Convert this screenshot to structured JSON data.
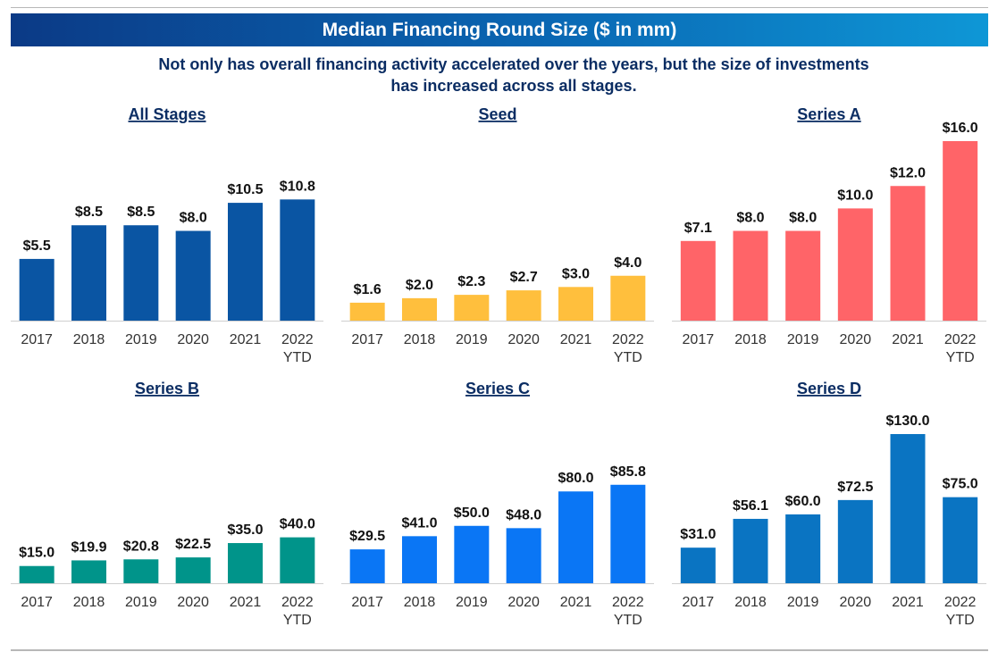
{
  "header": {
    "title": "Median Financing Round Size ($ in mm)",
    "subtitle_line1": "Not only has overall financing activity accelerated over the years, but the size of investments",
    "subtitle_line2": "has increased across all stages."
  },
  "chart_data": [
    {
      "type": "bar",
      "title": "All Stages",
      "categories": [
        "2017",
        "2018",
        "2019",
        "2020",
        "2021",
        "2022 YTD"
      ],
      "values": [
        5.5,
        8.5,
        8.5,
        8.0,
        10.5,
        10.8
      ],
      "labels": [
        "$5.5",
        "$8.5",
        "$8.5",
        "$8.0",
        "$10.5",
        "$10.8"
      ],
      "ylim": [
        0,
        16
      ],
      "color": "#0a55a3",
      "grid": false
    },
    {
      "type": "bar",
      "title": "Seed",
      "categories": [
        "2017",
        "2018",
        "2019",
        "2020",
        "2021",
        "2022 YTD"
      ],
      "values": [
        1.6,
        2.0,
        2.3,
        2.7,
        3.0,
        4.0
      ],
      "labels": [
        "$1.6",
        "$2.0",
        "$2.3",
        "$2.7",
        "$3.0",
        "$4.0"
      ],
      "ylim": [
        0,
        16
      ],
      "color": "#ffbf3d",
      "grid": false
    },
    {
      "type": "bar",
      "title": "Series A",
      "categories": [
        "2017",
        "2018",
        "2019",
        "2020",
        "2021",
        "2022 YTD"
      ],
      "values": [
        7.1,
        8.0,
        8.0,
        10.0,
        12.0,
        16.0
      ],
      "labels": [
        "$7.1",
        "$8.0",
        "$8.0",
        "$10.0",
        "$12.0",
        "$16.0"
      ],
      "ylim": [
        0,
        16
      ],
      "color": "#ff6468",
      "grid": false
    },
    {
      "type": "bar",
      "title": "Series B",
      "categories": [
        "2017",
        "2018",
        "2019",
        "2020",
        "2021",
        "2022 YTD"
      ],
      "values": [
        15.0,
        19.9,
        20.8,
        22.5,
        35.0,
        40.0
      ],
      "labels": [
        "$15.0",
        "$19.9",
        "$20.8",
        "$22.5",
        "$35.0",
        "$40.0"
      ],
      "ylim": [
        0,
        130
      ],
      "color": "#00948a",
      "grid": false
    },
    {
      "type": "bar",
      "title": "Series C",
      "categories": [
        "2017",
        "2018",
        "2019",
        "2020",
        "2021",
        "2022 YTD"
      ],
      "values": [
        29.5,
        41.0,
        50.0,
        48.0,
        80.0,
        85.8
      ],
      "labels": [
        "$29.5",
        "$41.0",
        "$50.0",
        "$48.0",
        "$80.0",
        "$85.8"
      ],
      "ylim": [
        0,
        130
      ],
      "color": "#0a76f5",
      "grid": false
    },
    {
      "type": "bar",
      "title": "Series D",
      "categories": [
        "2017",
        "2018",
        "2019",
        "2020",
        "2021",
        "2022 YTD"
      ],
      "values": [
        31.0,
        56.1,
        60.0,
        72.5,
        130.0,
        75.0
      ],
      "labels": [
        "$31.0",
        "$56.1",
        "$60.0",
        "$72.5",
        "$130.0",
        "$75.0"
      ],
      "ylim": [
        0,
        130
      ],
      "color": "#0a74c2",
      "grid": false
    }
  ]
}
